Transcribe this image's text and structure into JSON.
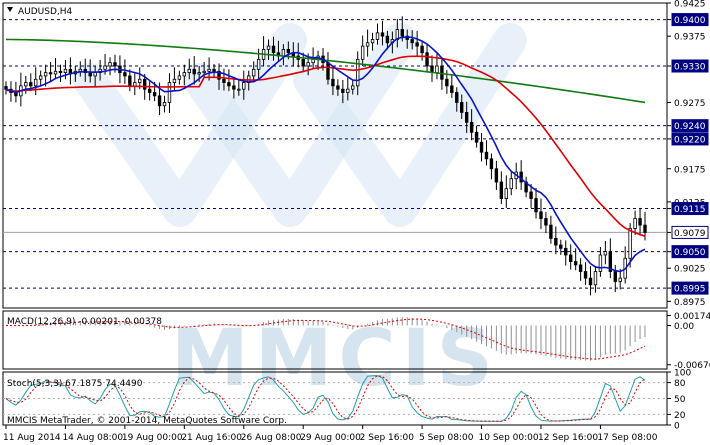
{
  "main": {
    "title": "AUDUSD,H4",
    "ylim": [
      0.8965,
      0.9425
    ],
    "ticks": [
      {
        "v": 0.9425,
        "label": "0.9425",
        "type": "tick"
      },
      {
        "v": 0.94,
        "label": "0.9400",
        "type": "level"
      },
      {
        "v": 0.9375,
        "label": "0.9375",
        "type": "tick"
      },
      {
        "v": 0.933,
        "label": "0.9330",
        "type": "level"
      },
      {
        "v": 0.9275,
        "label": "0.9275",
        "type": "tick"
      },
      {
        "v": 0.924,
        "label": "0.9240",
        "type": "level"
      },
      {
        "v": 0.922,
        "label": "0.9220",
        "type": "level"
      },
      {
        "v": 0.9175,
        "label": "0.9175",
        "type": "tick"
      },
      {
        "v": 0.9125,
        "label": "0.9125",
        "type": "tick"
      },
      {
        "v": 0.9115,
        "label": "0.9115",
        "type": "level"
      },
      {
        "v": 0.9079,
        "label": "0.9079",
        "type": "current"
      },
      {
        "v": 0.905,
        "label": "0.9050",
        "type": "level"
      },
      {
        "v": 0.9025,
        "label": "0.9025",
        "type": "tick"
      },
      {
        "v": 0.8995,
        "label": "0.8995",
        "type": "level"
      },
      {
        "v": 0.8975,
        "label": "0.8975",
        "type": "tick"
      }
    ]
  },
  "macd": {
    "label": "MACD(12,26,9) -0.00201 -0.00378",
    "ticks": [
      {
        "v": 0.00174,
        "label": "0.00174"
      },
      {
        "v": 0.0,
        "label": "0.00"
      },
      {
        "v": -0.00676,
        "label": "-0.00676"
      }
    ]
  },
  "stoch": {
    "label": "Stoch(5,3,3) 67.1875 74.4490",
    "ticks": [
      {
        "v": 100,
        "label": "100"
      },
      {
        "v": 80,
        "label": "80"
      },
      {
        "v": 50,
        "label": "50"
      },
      {
        "v": 20,
        "label": "20"
      },
      {
        "v": 0,
        "label": "0"
      }
    ]
  },
  "copyright": "MMCIS MetaTrader, © 2001-2014, MetaQuotes Software Corp.",
  "watermark": "MMCIS",
  "xaxis": [
    {
      "i": 0,
      "label": "11 Aug 2014"
    },
    {
      "i": 12,
      "label": "14 Aug 08:00"
    },
    {
      "i": 24,
      "label": "19 Aug 00:00"
    },
    {
      "i": 36,
      "label": "21 Aug 16:00"
    },
    {
      "i": 48,
      "label": "26 Aug 08:00"
    },
    {
      "i": 60,
      "label": "29 Aug 00:00"
    },
    {
      "i": 72,
      "label": "2 Sep 16:00"
    },
    {
      "i": 84,
      "label": "5 Sep 08:00"
    },
    {
      "i": 96,
      "label": "10 Sep 00:00"
    },
    {
      "i": 108,
      "label": "12 Sep 16:00"
    },
    {
      "i": 120,
      "label": "17 Sep 08:00"
    }
  ],
  "colors": {
    "up_candle": "#000000",
    "down_candle": "#000000",
    "ma_fast": "#0a14c8",
    "ma_mid": "#dc0000",
    "ma_slow": "#117a11",
    "macd_signal": "#dc0000",
    "macd_hist": "#909090",
    "stoch_main": "#20a0a8",
    "stoch_signal": "#dc0000",
    "level_line": "#000080",
    "current_line": "#a0a0a0",
    "watermark": "#cfe2f2"
  },
  "chart_data": {
    "type": "candlestick",
    "symbol": "AUDUSD",
    "timeframe": "H4",
    "closes": [
      0.9295,
      0.929,
      0.9285,
      0.93,
      0.9305,
      0.93,
      0.931,
      0.9315,
      0.932,
      0.9318,
      0.9322,
      0.932,
      0.9325,
      0.9318,
      0.9322,
      0.9325,
      0.932,
      0.9315,
      0.932,
      0.9325,
      0.933,
      0.9335,
      0.933,
      0.932,
      0.9315,
      0.93,
      0.9305,
      0.931,
      0.9295,
      0.929,
      0.9285,
      0.927,
      0.9275,
      0.9305,
      0.931,
      0.9315,
      0.932,
      0.9325,
      0.9318,
      0.932,
      0.9322,
      0.9325,
      0.9322,
      0.931,
      0.9305,
      0.93,
      0.9295,
      0.9295,
      0.9305,
      0.9315,
      0.9325,
      0.934,
      0.9355,
      0.936,
      0.935,
      0.9345,
      0.9355,
      0.935,
      0.9345,
      0.934,
      0.933,
      0.9335,
      0.934,
      0.9345,
      0.9335,
      0.931,
      0.93,
      0.9295,
      0.929,
      0.9295,
      0.93,
      0.934,
      0.936,
      0.9365,
      0.937,
      0.938,
      0.9375,
      0.9365,
      0.937,
      0.9385,
      0.9375,
      0.937,
      0.9365,
      0.936,
      0.935,
      0.933,
      0.932,
      0.933,
      0.931,
      0.93,
      0.929,
      0.9275,
      0.926,
      0.9245,
      0.923,
      0.9215,
      0.92,
      0.919,
      0.9175,
      0.9155,
      0.913,
      0.9145,
      0.916,
      0.917,
      0.9155,
      0.914,
      0.913,
      0.911,
      0.91,
      0.909,
      0.907,
      0.906,
      0.9055,
      0.9045,
      0.9035,
      0.903,
      0.902,
      0.901,
      0.9,
      0.902,
      0.9045,
      0.905,
      0.902,
      0.9005,
      0.901,
      0.904,
      0.9085,
      0.91,
      0.909,
      0.9079
    ]
  }
}
